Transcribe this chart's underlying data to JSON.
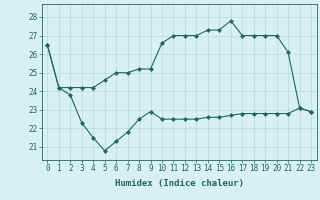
{
  "line1_x": [
    0,
    1,
    2,
    3,
    4,
    5,
    6,
    7,
    8,
    9,
    10,
    11,
    12,
    13,
    14,
    15,
    16,
    17,
    18,
    19,
    20,
    21,
    22,
    23
  ],
  "line1_y": [
    26.5,
    24.2,
    24.2,
    24.2,
    24.2,
    24.6,
    25.0,
    25.0,
    25.2,
    25.2,
    26.6,
    27.0,
    27.0,
    27.0,
    27.3,
    27.3,
    27.8,
    27.0,
    27.0,
    27.0,
    27.0,
    26.1,
    23.1,
    22.9
  ],
  "line2_x": [
    0,
    1,
    2,
    3,
    4,
    5,
    6,
    7,
    8,
    9,
    10,
    11,
    12,
    13,
    14,
    15,
    16,
    17,
    18,
    19,
    20,
    21,
    22,
    23
  ],
  "line2_y": [
    26.5,
    24.2,
    23.8,
    22.3,
    21.5,
    20.8,
    21.3,
    21.8,
    22.5,
    22.9,
    22.5,
    22.5,
    22.5,
    22.5,
    22.6,
    22.6,
    22.7,
    22.8,
    22.8,
    22.8,
    22.8,
    22.8,
    23.1,
    22.9
  ],
  "line_color": "#1a6b5a",
  "marker": "D",
  "markersize": 2.0,
  "xlabel": "Humidex (Indice chaleur)",
  "ylabel_ticks": [
    21,
    22,
    23,
    24,
    25,
    26,
    27,
    28
  ],
  "ylim": [
    20.3,
    28.7
  ],
  "xlim": [
    -0.5,
    23.5
  ],
  "bg_color": "#d8f0f0",
  "grid_color": "#b8dada",
  "tick_color": "#1a6b5a",
  "label_fontsize": 6.5,
  "tick_fontsize": 5.5
}
